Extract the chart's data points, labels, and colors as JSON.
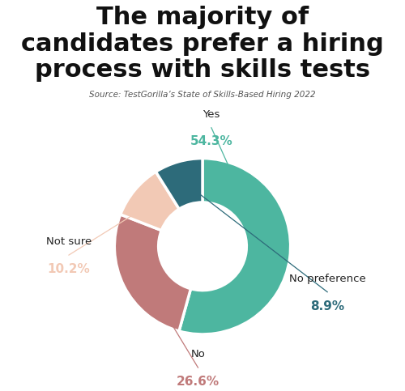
{
  "title_line1": "The majority of",
  "title_line2": "candidates prefer a hiring",
  "title_line3": "process with skills tests",
  "source": "Source: TestGorilla’s State of Skills-Based Hiring 2022",
  "slices": [
    54.3,
    26.6,
    10.2,
    8.9
  ],
  "labels": [
    "Yes",
    "No",
    "Not sure",
    "No preference"
  ],
  "pct_labels": [
    "54.3%",
    "26.6%",
    "10.2%",
    "8.9%"
  ],
  "colors": [
    "#4db6a0",
    "#c07a7a",
    "#f2c9b5",
    "#2d6b7a"
  ],
  "connector_colors": [
    "#4db6a0",
    "#c07a7a",
    "#f2c9b5",
    "#2d6b7a"
  ],
  "background_color": "#ffffff",
  "title_fontsize": 22,
  "source_fontsize": 7.5,
  "label_fontsize": 9.5,
  "pct_fontsize": 11,
  "startangle": 90
}
